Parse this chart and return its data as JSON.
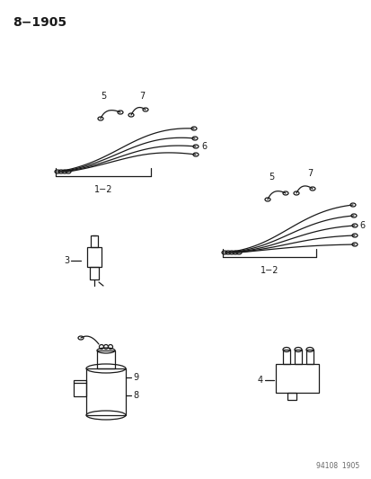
{
  "title": "8−1905",
  "footer": "94108  1905",
  "bg_color": "#ffffff",
  "text_color": "#1a1a1a",
  "fig_width": 4.14,
  "fig_height": 5.33,
  "dpi": 100
}
